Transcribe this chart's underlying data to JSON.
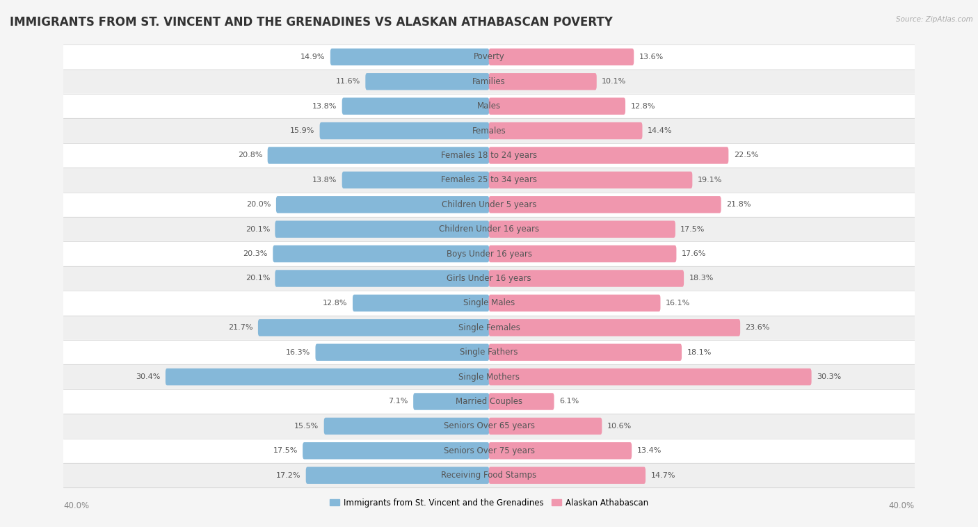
{
  "title": "IMMIGRANTS FROM ST. VINCENT AND THE GRENADINES VS ALASKAN ATHABASCAN POVERTY",
  "source": "Source: ZipAtlas.com",
  "categories": [
    "Poverty",
    "Families",
    "Males",
    "Females",
    "Females 18 to 24 years",
    "Females 25 to 34 years",
    "Children Under 5 years",
    "Children Under 16 years",
    "Boys Under 16 years",
    "Girls Under 16 years",
    "Single Males",
    "Single Females",
    "Single Fathers",
    "Single Mothers",
    "Married Couples",
    "Seniors Over 65 years",
    "Seniors Over 75 years",
    "Receiving Food Stamps"
  ],
  "left_values": [
    14.9,
    11.6,
    13.8,
    15.9,
    20.8,
    13.8,
    20.0,
    20.1,
    20.3,
    20.1,
    12.8,
    21.7,
    16.3,
    30.4,
    7.1,
    15.5,
    17.5,
    17.2
  ],
  "right_values": [
    13.6,
    10.1,
    12.8,
    14.4,
    22.5,
    19.1,
    21.8,
    17.5,
    17.6,
    18.3,
    16.1,
    23.6,
    18.1,
    30.3,
    6.1,
    10.6,
    13.4,
    14.7
  ],
  "left_color": "#85B8D9",
  "right_color": "#F097AE",
  "row_colors": [
    "#ffffff",
    "#efefef"
  ],
  "text_on_bar_color": "#ffffff",
  "text_outside_bar_color": "#555555",
  "background_color": "#f5f5f5",
  "axis_limit": 40.0,
  "left_legend": "Immigrants from St. Vincent and the Grenadines",
  "right_legend": "Alaskan Athabascan",
  "title_fontsize": 12,
  "label_fontsize": 8.5,
  "value_fontsize": 8.0,
  "bar_height": 0.65
}
